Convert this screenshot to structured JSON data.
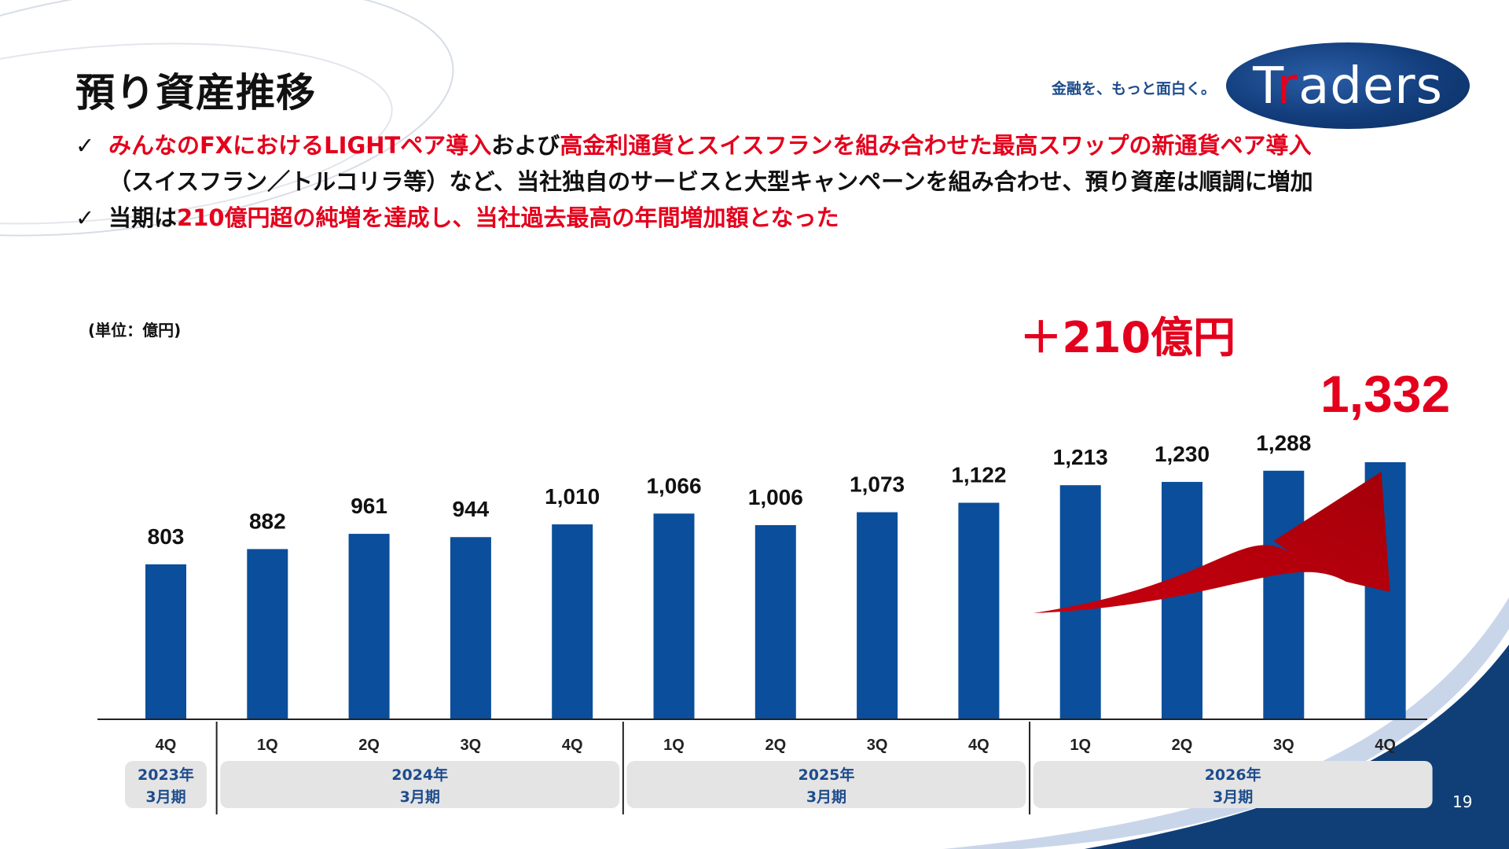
{
  "header": {
    "title": "預り資産推移",
    "tagline": "金融を、もっと面白く。",
    "logo_text_pre": "T",
    "logo_text_accent": "r",
    "logo_text_post": "aders"
  },
  "bullets": {
    "check_glyph": "✓",
    "b1_red1": "みんなのFXにおけるLIGHTペア導入",
    "b1_dark1": "および",
    "b1_red2": "高金利通貨とスイスフランを組み合わせた最高スワップの新通貨ペア導入",
    "b1_line2": "（スイスフラン／トルコリラ等）など、当社独自のサービスと大型キャンペーンを組み合わせ、預り資産は順調に増加",
    "b2_dark": "当期は",
    "b2_red": "210億円超の純増を達成し、当社過去最高の年間増加額となった"
  },
  "unit_label": "(単位：億円)",
  "page_number": "19",
  "colors": {
    "bar": "#0b4e9b",
    "accent_red": "#e4001c",
    "arrow_red": "#c8000f",
    "period_box": "#e4e4e4",
    "period_text": "#1d4c8c",
    "corner_navy": "#103f78"
  },
  "chart_data": {
    "type": "bar",
    "categories": [
      "4Q",
      "1Q",
      "2Q",
      "3Q",
      "4Q",
      "1Q",
      "2Q",
      "3Q",
      "4Q",
      "1Q",
      "2Q",
      "3Q",
      "4Q"
    ],
    "values": [
      803,
      882,
      961,
      944,
      1010,
      1066,
      1006,
      1073,
      1122,
      1213,
      1230,
      1288,
      1332
    ],
    "value_labels": [
      "803",
      "882",
      "961",
      "944",
      "1,010",
      "1,066",
      "1,006",
      "1,073",
      "1,122",
      "1,213",
      "1,230",
      "1,288",
      "1,332"
    ],
    "groups": [
      {
        "label_year": "2023年",
        "label_period": "3月期",
        "count": 1
      },
      {
        "label_year": "2024年",
        "label_period": "3月期",
        "count": 4
      },
      {
        "label_year": "2025年",
        "label_period": "3月期",
        "count": 4
      },
      {
        "label_year": "2026年",
        "label_period": "3月期",
        "count": 4
      }
    ],
    "highlight_index": 12,
    "annotation": "＋210億円",
    "ylim": [
      0,
      1332
    ]
  }
}
